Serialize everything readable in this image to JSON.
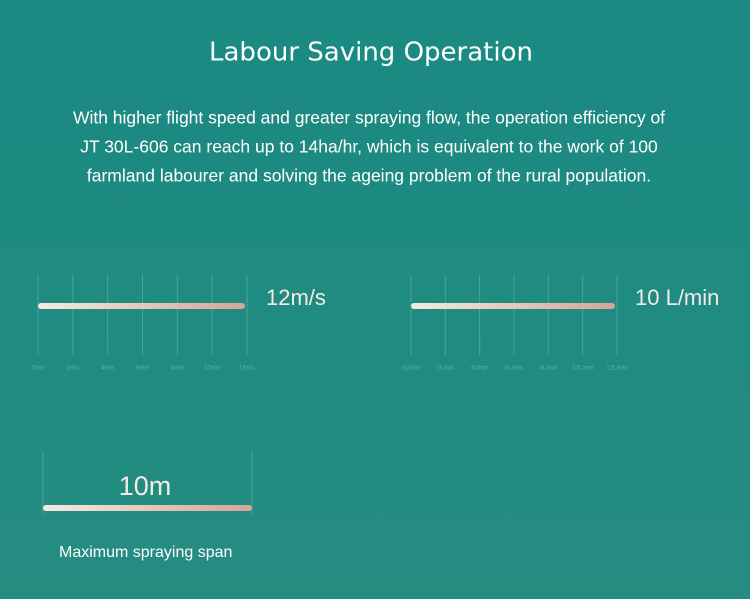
{
  "header": {
    "title": "Labour Saving Operation"
  },
  "paragraph": {
    "lines": [
      "With higher flight speed and greater spraying flow, the operation efficiency of",
      "JT 30L-606 can reach up to 14ha/hr, which is equivalent to the work of 100",
      "farmland labourer and solving the ageing problem of the rural population."
    ]
  },
  "gauges": [
    {
      "label": "12m/s",
      "tick_labels": [
        "0m/s",
        "2m/s",
        "4m/s",
        "6m/s",
        "8m/s",
        "10m/s",
        "12m/s"
      ]
    },
    {
      "label": "10 L/min",
      "tick_labels": [
        "0L/min",
        "2L/min",
        "4L/min",
        "6L/min",
        "8L/min",
        "10L/min",
        "12L/min"
      ]
    }
  ],
  "span": {
    "label": "10m",
    "caption": "Maximum spraying span"
  }
}
